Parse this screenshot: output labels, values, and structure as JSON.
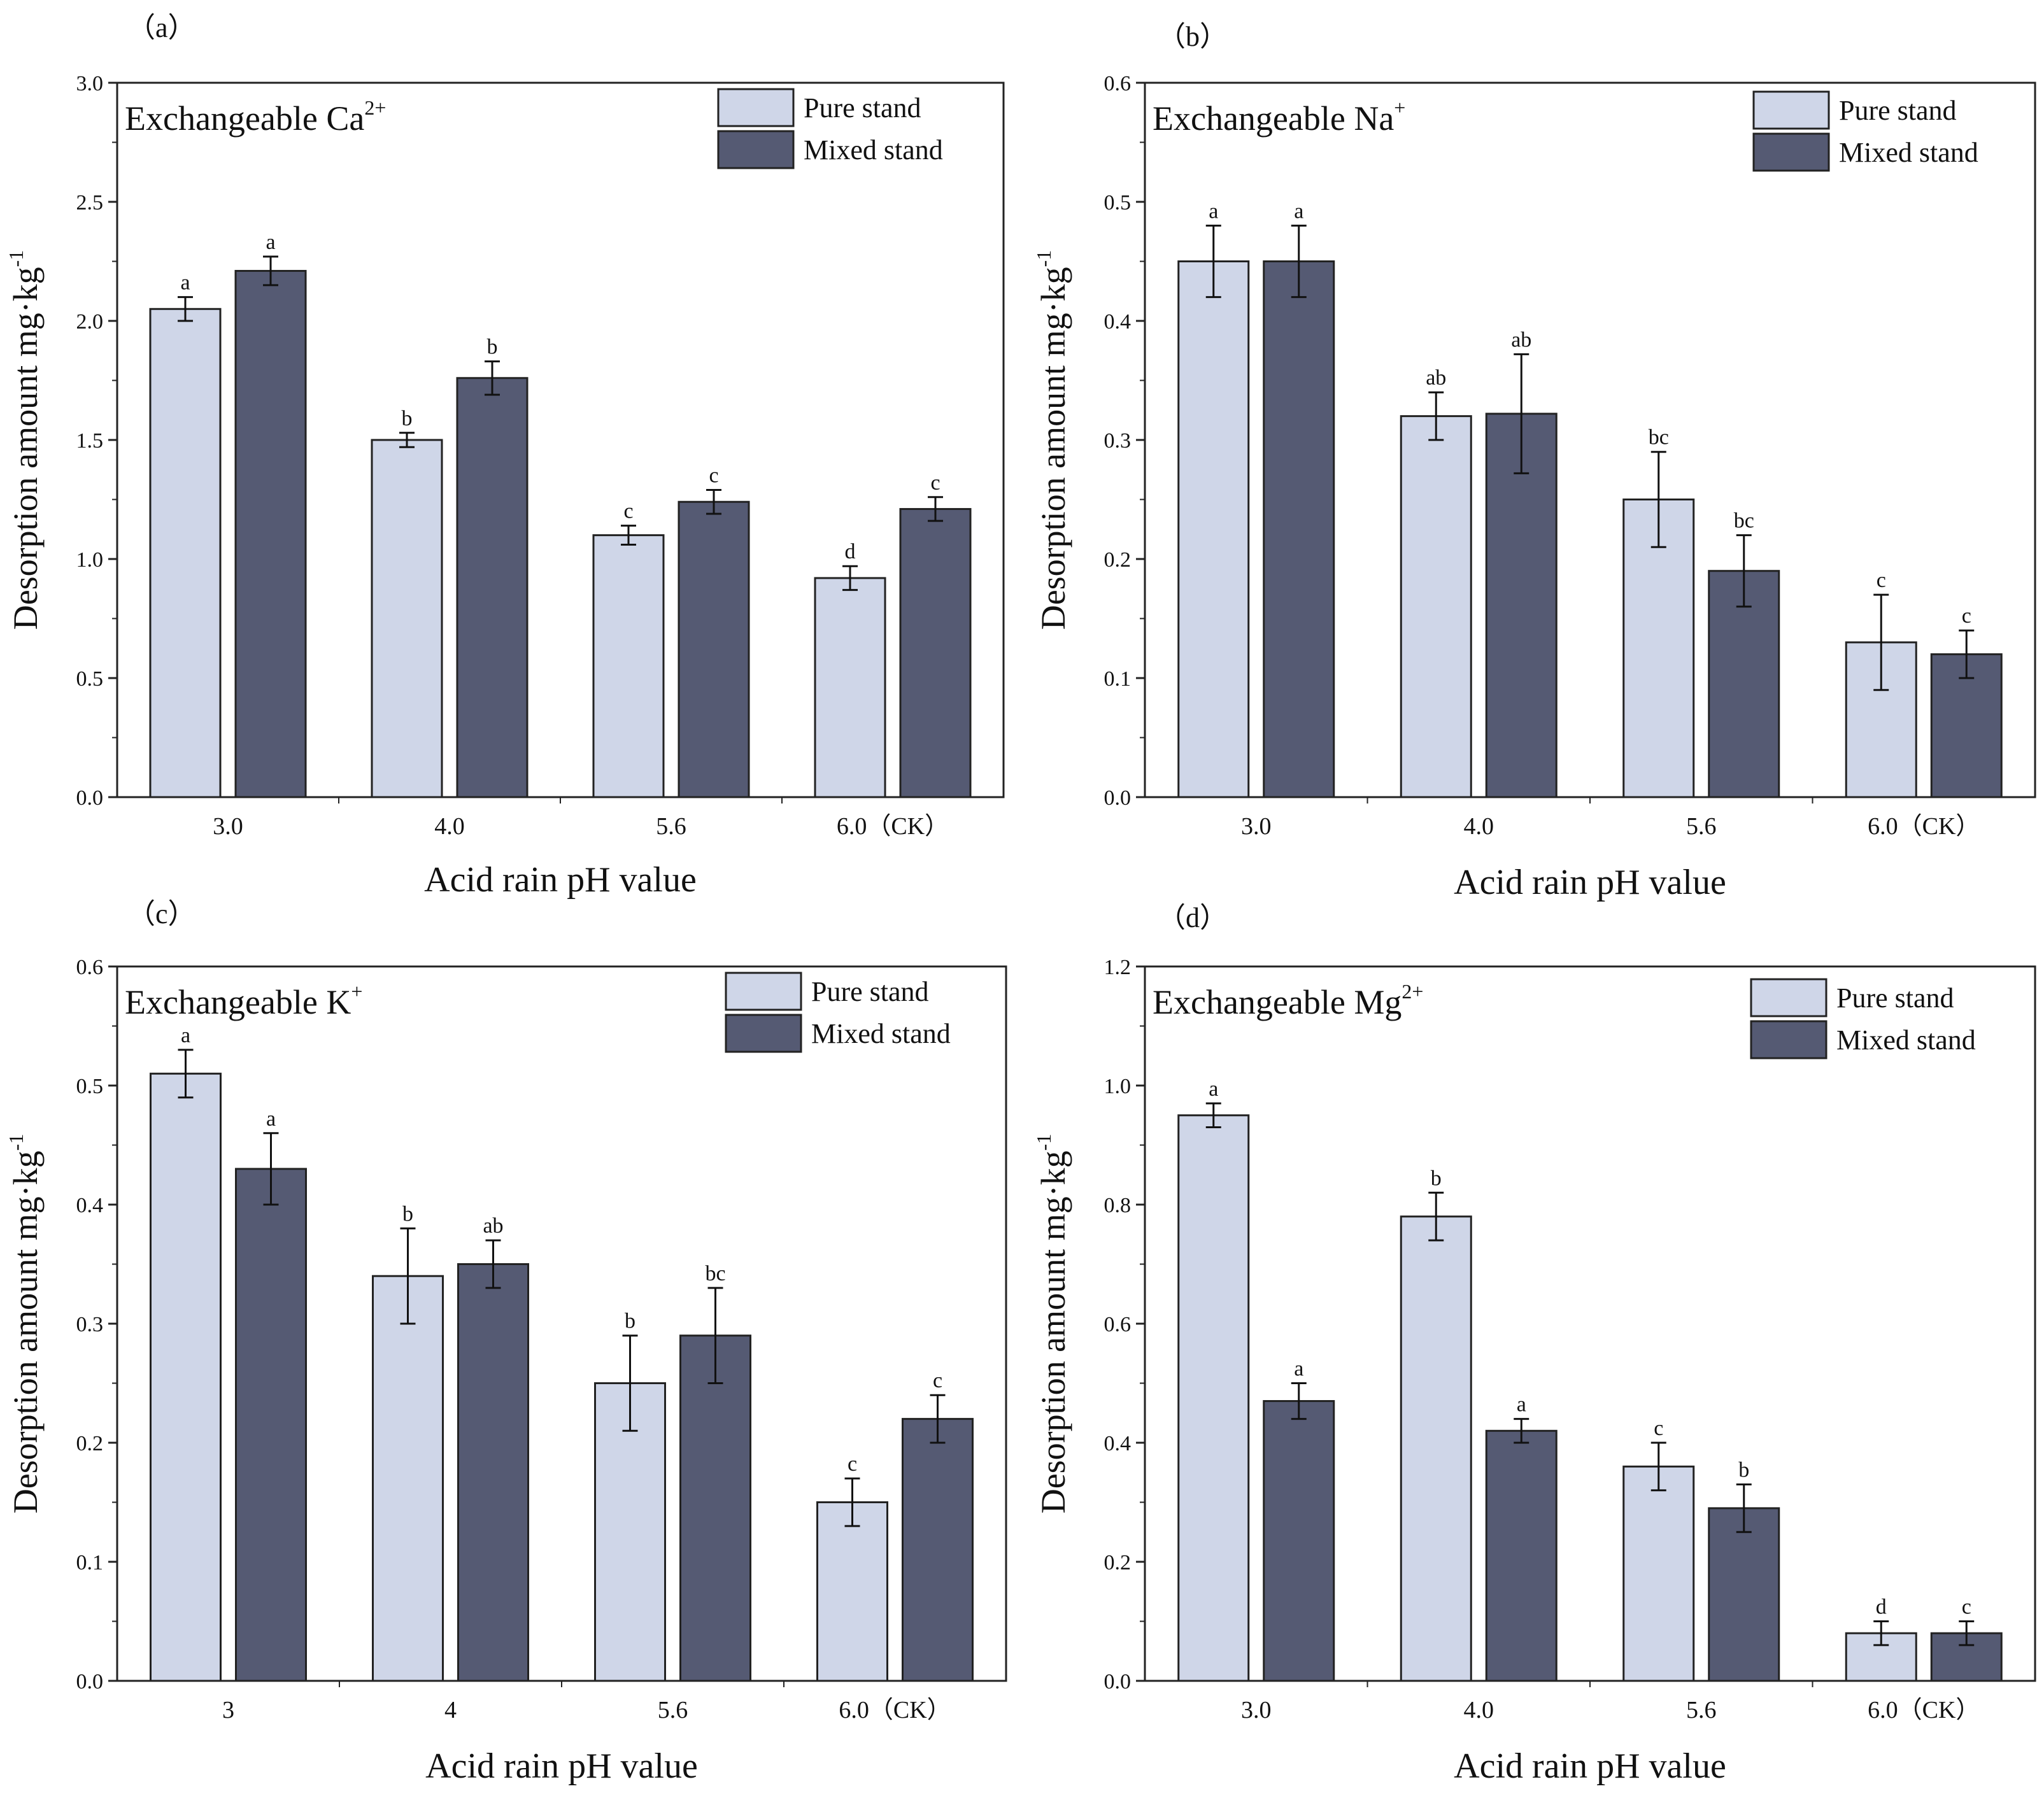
{
  "figure": {
    "colors": {
      "pure": "#cfd6e8",
      "mixed": "#555a73",
      "axis": "#222222"
    }
  },
  "chart_data": [
    {
      "type": "bar",
      "panel_label": "（a）",
      "title": "Exchangeable Ca",
      "title_sup": "2+",
      "xlabel": "Acid rain pH value",
      "ylabel": "Desorption amount mg·kg",
      "ylabel_sup": "-1",
      "ylim": [
        0,
        3.0
      ],
      "yticks": [
        "0.0",
        "0.5",
        "1.0",
        "1.5",
        "2.0",
        "2.5",
        "3.0"
      ],
      "categories": [
        "3.0",
        "4.0",
        "5.6",
        "6.0（CK）"
      ],
      "legend": [
        "Pure stand",
        "Mixed stand"
      ],
      "series": [
        {
          "name": "Pure stand",
          "values": [
            2.05,
            1.5,
            1.1,
            0.92
          ],
          "errors": [
            0.05,
            0.03,
            0.04,
            0.05
          ],
          "labels": [
            "a",
            "b",
            "c",
            "d"
          ]
        },
        {
          "name": "Mixed stand",
          "values": [
            2.21,
            1.76,
            1.24,
            1.21
          ],
          "errors": [
            0.06,
            0.07,
            0.05,
            0.05
          ],
          "labels": [
            "a",
            "b",
            "c",
            "c"
          ]
        }
      ]
    },
    {
      "type": "bar",
      "panel_label": "（b）",
      "title": "Exchangeable Na",
      "title_sup": "+",
      "xlabel": "Acid rain pH value",
      "ylabel": "Desorption amount mg·kg",
      "ylabel_sup": "-1",
      "ylim": [
        0,
        0.6
      ],
      "yticks": [
        "0.0",
        "0.1",
        "0.2",
        "0.3",
        "0.4",
        "0.5",
        "0.6"
      ],
      "categories": [
        "3.0",
        "4.0",
        "5.6",
        "6.0（CK）"
      ],
      "legend": [
        "Pure stand",
        "Mixed stand"
      ],
      "series": [
        {
          "name": "Pure stand",
          "values": [
            0.45,
            0.32,
            0.25,
            0.13
          ],
          "errors": [
            0.03,
            0.02,
            0.04,
            0.04
          ],
          "labels": [
            "a",
            "ab",
            "bc",
            "c"
          ]
        },
        {
          "name": "Mixed stand",
          "values": [
            0.45,
            0.322,
            0.19,
            0.12
          ],
          "errors": [
            0.03,
            0.05,
            0.03,
            0.02
          ],
          "labels": [
            "a",
            "ab",
            "bc",
            "c"
          ]
        }
      ]
    },
    {
      "type": "bar",
      "panel_label": "（c）",
      "title": "Exchangeable K",
      "title_sup": "+",
      "xlabel": "Acid rain pH value",
      "ylabel": "Desorption amount mg·kg",
      "ylabel_sup": "-1",
      "ylim": [
        0,
        0.6
      ],
      "yticks": [
        "0.0",
        "0.1",
        "0.2",
        "0.3",
        "0.4",
        "0.5",
        "0.6"
      ],
      "categories": [
        "3",
        "4",
        "5.6",
        "6.0（CK）"
      ],
      "legend": [
        "Pure stand",
        "Mixed stand"
      ],
      "series": [
        {
          "name": "Pure stand",
          "values": [
            0.51,
            0.34,
            0.25,
            0.15
          ],
          "errors": [
            0.02,
            0.04,
            0.04,
            0.02
          ],
          "labels": [
            "a",
            "b",
            "b",
            "c"
          ]
        },
        {
          "name": "Mixed stand",
          "values": [
            0.43,
            0.35,
            0.29,
            0.22
          ],
          "errors": [
            0.03,
            0.02,
            0.04,
            0.02
          ],
          "labels": [
            "a",
            "ab",
            "bc",
            "c"
          ]
        }
      ]
    },
    {
      "type": "bar",
      "panel_label": "（d）",
      "title": "Exchangeable Mg",
      "title_sup": "2+",
      "xlabel": "Acid rain pH value",
      "ylabel": "Desorption amount mg·kg",
      "ylabel_sup": "-1",
      "ylim": [
        0,
        1.2
      ],
      "yticks": [
        "0.0",
        "0.2",
        "0.4",
        "0.6",
        "0.8",
        "1.0",
        "1.2"
      ],
      "categories": [
        "3.0",
        "4.0",
        "5.6",
        "6.0（CK）"
      ],
      "legend": [
        "Pure stand",
        "Mixed stand"
      ],
      "series": [
        {
          "name": "Pure stand",
          "values": [
            0.95,
            0.78,
            0.36,
            0.08
          ],
          "errors": [
            0.02,
            0.04,
            0.04,
            0.02
          ],
          "labels": [
            "a",
            "b",
            "c",
            "d"
          ]
        },
        {
          "name": "Mixed stand",
          "values": [
            0.47,
            0.42,
            0.29,
            0.08
          ],
          "errors": [
            0.03,
            0.02,
            0.04,
            0.02
          ],
          "labels": [
            "a",
            "a",
            "b",
            "c"
          ]
        }
      ]
    }
  ]
}
